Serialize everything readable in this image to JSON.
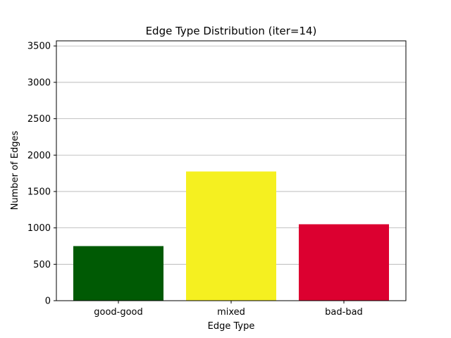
{
  "chart_data": {
    "type": "bar",
    "title": "Edge Type Distribution (iter=14)",
    "xlabel": "Edge Type",
    "ylabel": "Number of Edges",
    "categories": [
      "good-good",
      "mixed",
      "bad-bad"
    ],
    "values": [
      750,
      1775,
      1050
    ],
    "colors": [
      "#005a04",
      "#f5f020",
      "#dc0030"
    ],
    "ylim": [
      0,
      3570
    ],
    "yticks": [
      0,
      500,
      1000,
      1500,
      2000,
      2500,
      3000,
      3500
    ],
    "grid": "y"
  }
}
